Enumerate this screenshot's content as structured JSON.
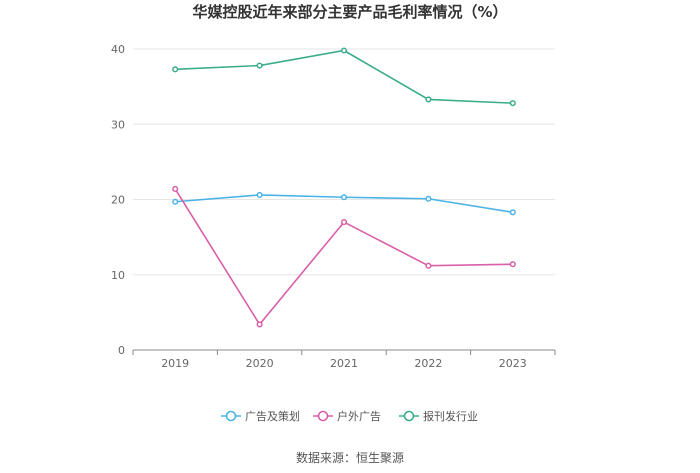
{
  "chart_data": {
    "type": "line",
    "title": "华媒控股近年来部分主要产品毛利率情况（%）",
    "xlabel": "",
    "ylabel": "",
    "categories": [
      "2019",
      "2020",
      "2021",
      "2022",
      "2023"
    ],
    "ylim": [
      0,
      40
    ],
    "yticks": [
      0,
      10,
      20,
      30,
      40
    ],
    "grid": true,
    "legend_position": "bottom",
    "series": [
      {
        "name": "广告及策划",
        "color": "#4ab3e6",
        "values": [
          19.7,
          20.6,
          20.3,
          20.1,
          18.3
        ]
      },
      {
        "name": "户外广告",
        "color": "#d95fa8",
        "values": [
          21.4,
          3.4,
          17.0,
          11.2,
          11.4
        ]
      },
      {
        "name": "报刊发行业",
        "color": "#3aad8b",
        "values": [
          37.3,
          37.8,
          39.8,
          33.3,
          32.8
        ]
      }
    ]
  },
  "footer": {
    "source": "数据来源：恒生聚源"
  }
}
